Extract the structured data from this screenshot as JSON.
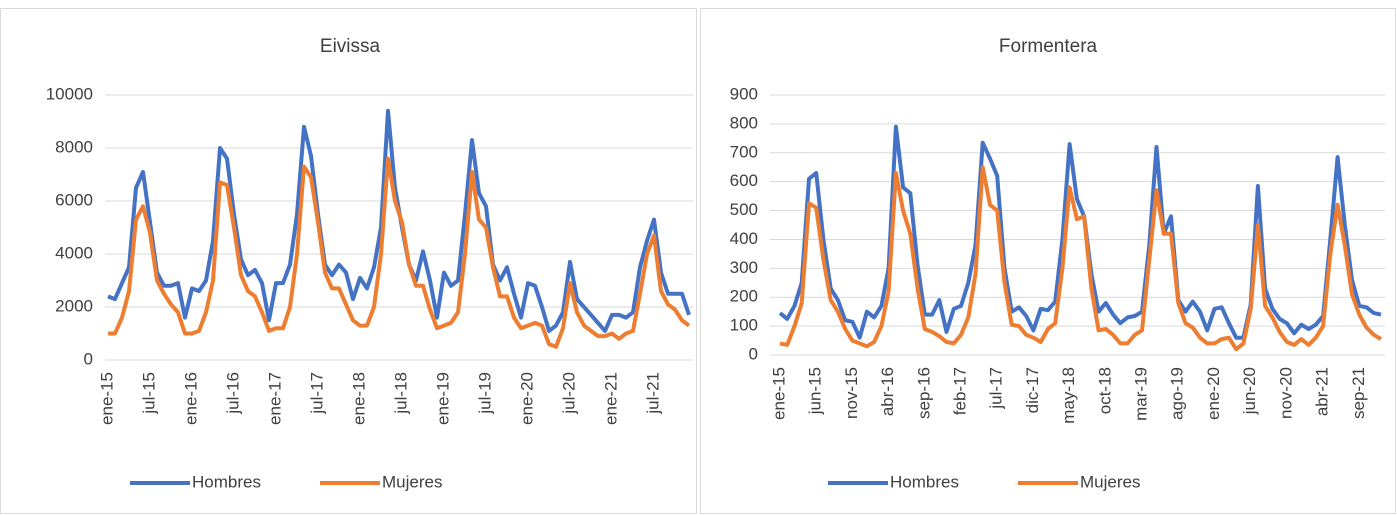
{
  "chart_data": [
    {
      "type": "line",
      "title": "Eivissa",
      "categories": [
        "ene-15",
        null,
        null,
        null,
        null,
        null,
        "jul-15",
        null,
        null,
        null,
        null,
        null,
        "ene-16",
        null,
        null,
        null,
        null,
        null,
        "jul-16",
        null,
        null,
        null,
        null,
        null,
        "ene-17",
        null,
        null,
        null,
        null,
        null,
        "jul-17",
        null,
        null,
        null,
        null,
        null,
        "ene-18",
        null,
        null,
        null,
        null,
        null,
        "jul-18",
        null,
        null,
        null,
        null,
        null,
        "ene-19",
        null,
        null,
        null,
        null,
        null,
        "jul-19",
        null,
        null,
        null,
        null,
        null,
        "ene-20",
        null,
        null,
        null,
        null,
        null,
        "jul-20",
        null,
        null,
        null,
        null,
        null,
        "ene-21",
        null,
        null,
        null,
        null,
        null,
        "jul-21",
        null,
        null,
        null,
        null,
        null
      ],
      "series": [
        {
          "name": "Hombres",
          "color": "#4472c4",
          "values": [
            2400,
            2300,
            2900,
            3500,
            6500,
            7100,
            5200,
            3300,
            2800,
            2800,
            2900,
            1600,
            2700,
            2600,
            3000,
            4500,
            8000,
            7600,
            5500,
            3800,
            3200,
            3400,
            2900,
            1500,
            2900,
            2900,
            3600,
            5500,
            8800,
            7700,
            5500,
            3600,
            3200,
            3600,
            3300,
            2300,
            3100,
            2700,
            3500,
            5000,
            9400,
            6500,
            5000,
            3600,
            3000,
            4100,
            3000,
            1600,
            3300,
            2800,
            3000,
            5500,
            8300,
            6300,
            5800,
            3600,
            3000,
            3500,
            2500,
            1600,
            2900,
            2800,
            2000,
            1100,
            1300,
            1800,
            3700,
            2300,
            2000,
            1700,
            1400,
            1100,
            1700,
            1700,
            1600,
            1800,
            3500,
            4500,
            5300,
            3300,
            2500,
            2500,
            2500,
            1700
          ]
        },
        {
          "name": "Mujeres",
          "color": "#ed7d31",
          "values": [
            1000,
            1000,
            1600,
            2600,
            5300,
            5800,
            4800,
            3000,
            2500,
            2100,
            1800,
            1000,
            1000,
            1100,
            1800,
            3000,
            6700,
            6600,
            5000,
            3200,
            2600,
            2400,
            1800,
            1100,
            1200,
            1200,
            2000,
            4000,
            7300,
            6900,
            5200,
            3300,
            2700,
            2700,
            2100,
            1500,
            1300,
            1300,
            2000,
            4000,
            7600,
            6000,
            5200,
            3600,
            2800,
            2800,
            1900,
            1200,
            1300,
            1400,
            1800,
            4000,
            7100,
            5300,
            5000,
            3500,
            2400,
            2400,
            1600,
            1200,
            1300,
            1400,
            1300,
            600,
            500,
            1200,
            2900,
            1800,
            1300,
            1100,
            900,
            900,
            1000,
            800,
            1000,
            1100,
            2500,
            4000,
            4700,
            2600,
            2100,
            1900,
            1500,
            1300
          ]
        }
      ],
      "ylim": [
        0,
        10000
      ],
      "yticks": [
        0,
        2000,
        4000,
        6000,
        8000,
        10000
      ],
      "grid": true,
      "legend": "bottom"
    },
    {
      "type": "line",
      "title": "Formentera",
      "categories": [
        "ene-15",
        null,
        null,
        null,
        null,
        "jun-15",
        null,
        null,
        null,
        null,
        "nov-15",
        null,
        null,
        null,
        null,
        "abr-16",
        null,
        null,
        null,
        null,
        "sep-16",
        null,
        null,
        null,
        null,
        "feb-17",
        null,
        null,
        null,
        null,
        "jul-17",
        null,
        null,
        null,
        null,
        "dic-17",
        null,
        null,
        null,
        null,
        "may-18",
        null,
        null,
        null,
        null,
        "oct-18",
        null,
        null,
        null,
        null,
        "mar-19",
        null,
        null,
        null,
        null,
        "ago-19",
        null,
        null,
        null,
        null,
        "ene-20",
        null,
        null,
        null,
        null,
        "jun-20",
        null,
        null,
        null,
        null,
        "nov-20",
        null,
        null,
        null,
        null,
        "abr-21",
        null,
        null,
        null,
        null,
        "sep-21",
        null,
        null,
        null
      ],
      "series": [
        {
          "name": "Hombres",
          "color": "#4472c4",
          "values": [
            145,
            125,
            170,
            250,
            610,
            630,
            400,
            230,
            190,
            120,
            115,
            60,
            150,
            130,
            170,
            300,
            790,
            580,
            560,
            310,
            140,
            140,
            190,
            80,
            160,
            170,
            250,
            380,
            735,
            680,
            620,
            300,
            150,
            165,
            135,
            85,
            160,
            155,
            185,
            400,
            730,
            540,
            480,
            280,
            150,
            180,
            140,
            110,
            130,
            135,
            150,
            380,
            720,
            420,
            480,
            190,
            150,
            185,
            150,
            85,
            160,
            165,
            110,
            60,
            60,
            175,
            585,
            230,
            160,
            125,
            110,
            75,
            105,
            90,
            105,
            135,
            400,
            685,
            450,
            260,
            170,
            165,
            145,
            140
          ]
        },
        {
          "name": "Mujeres",
          "color": "#ed7d31",
          "values": [
            40,
            35,
            100,
            180,
            525,
            510,
            330,
            190,
            150,
            90,
            50,
            40,
            30,
            45,
            100,
            220,
            630,
            500,
            420,
            230,
            90,
            80,
            65,
            45,
            40,
            70,
            130,
            280,
            650,
            520,
            500,
            250,
            105,
            100,
            70,
            60,
            45,
            90,
            110,
            300,
            580,
            470,
            480,
            230,
            85,
            90,
            70,
            40,
            40,
            70,
            85,
            330,
            570,
            420,
            420,
            180,
            110,
            95,
            60,
            40,
            40,
            55,
            60,
            20,
            40,
            160,
            450,
            170,
            130,
            80,
            45,
            35,
            55,
            35,
            60,
            100,
            350,
            520,
            380,
            210,
            140,
            95,
            70,
            55
          ]
        }
      ],
      "ylim": [
        0,
        900
      ],
      "yticks": [
        0,
        100,
        200,
        300,
        400,
        500,
        600,
        700,
        800,
        900
      ],
      "grid": true,
      "legend": "bottom"
    }
  ]
}
